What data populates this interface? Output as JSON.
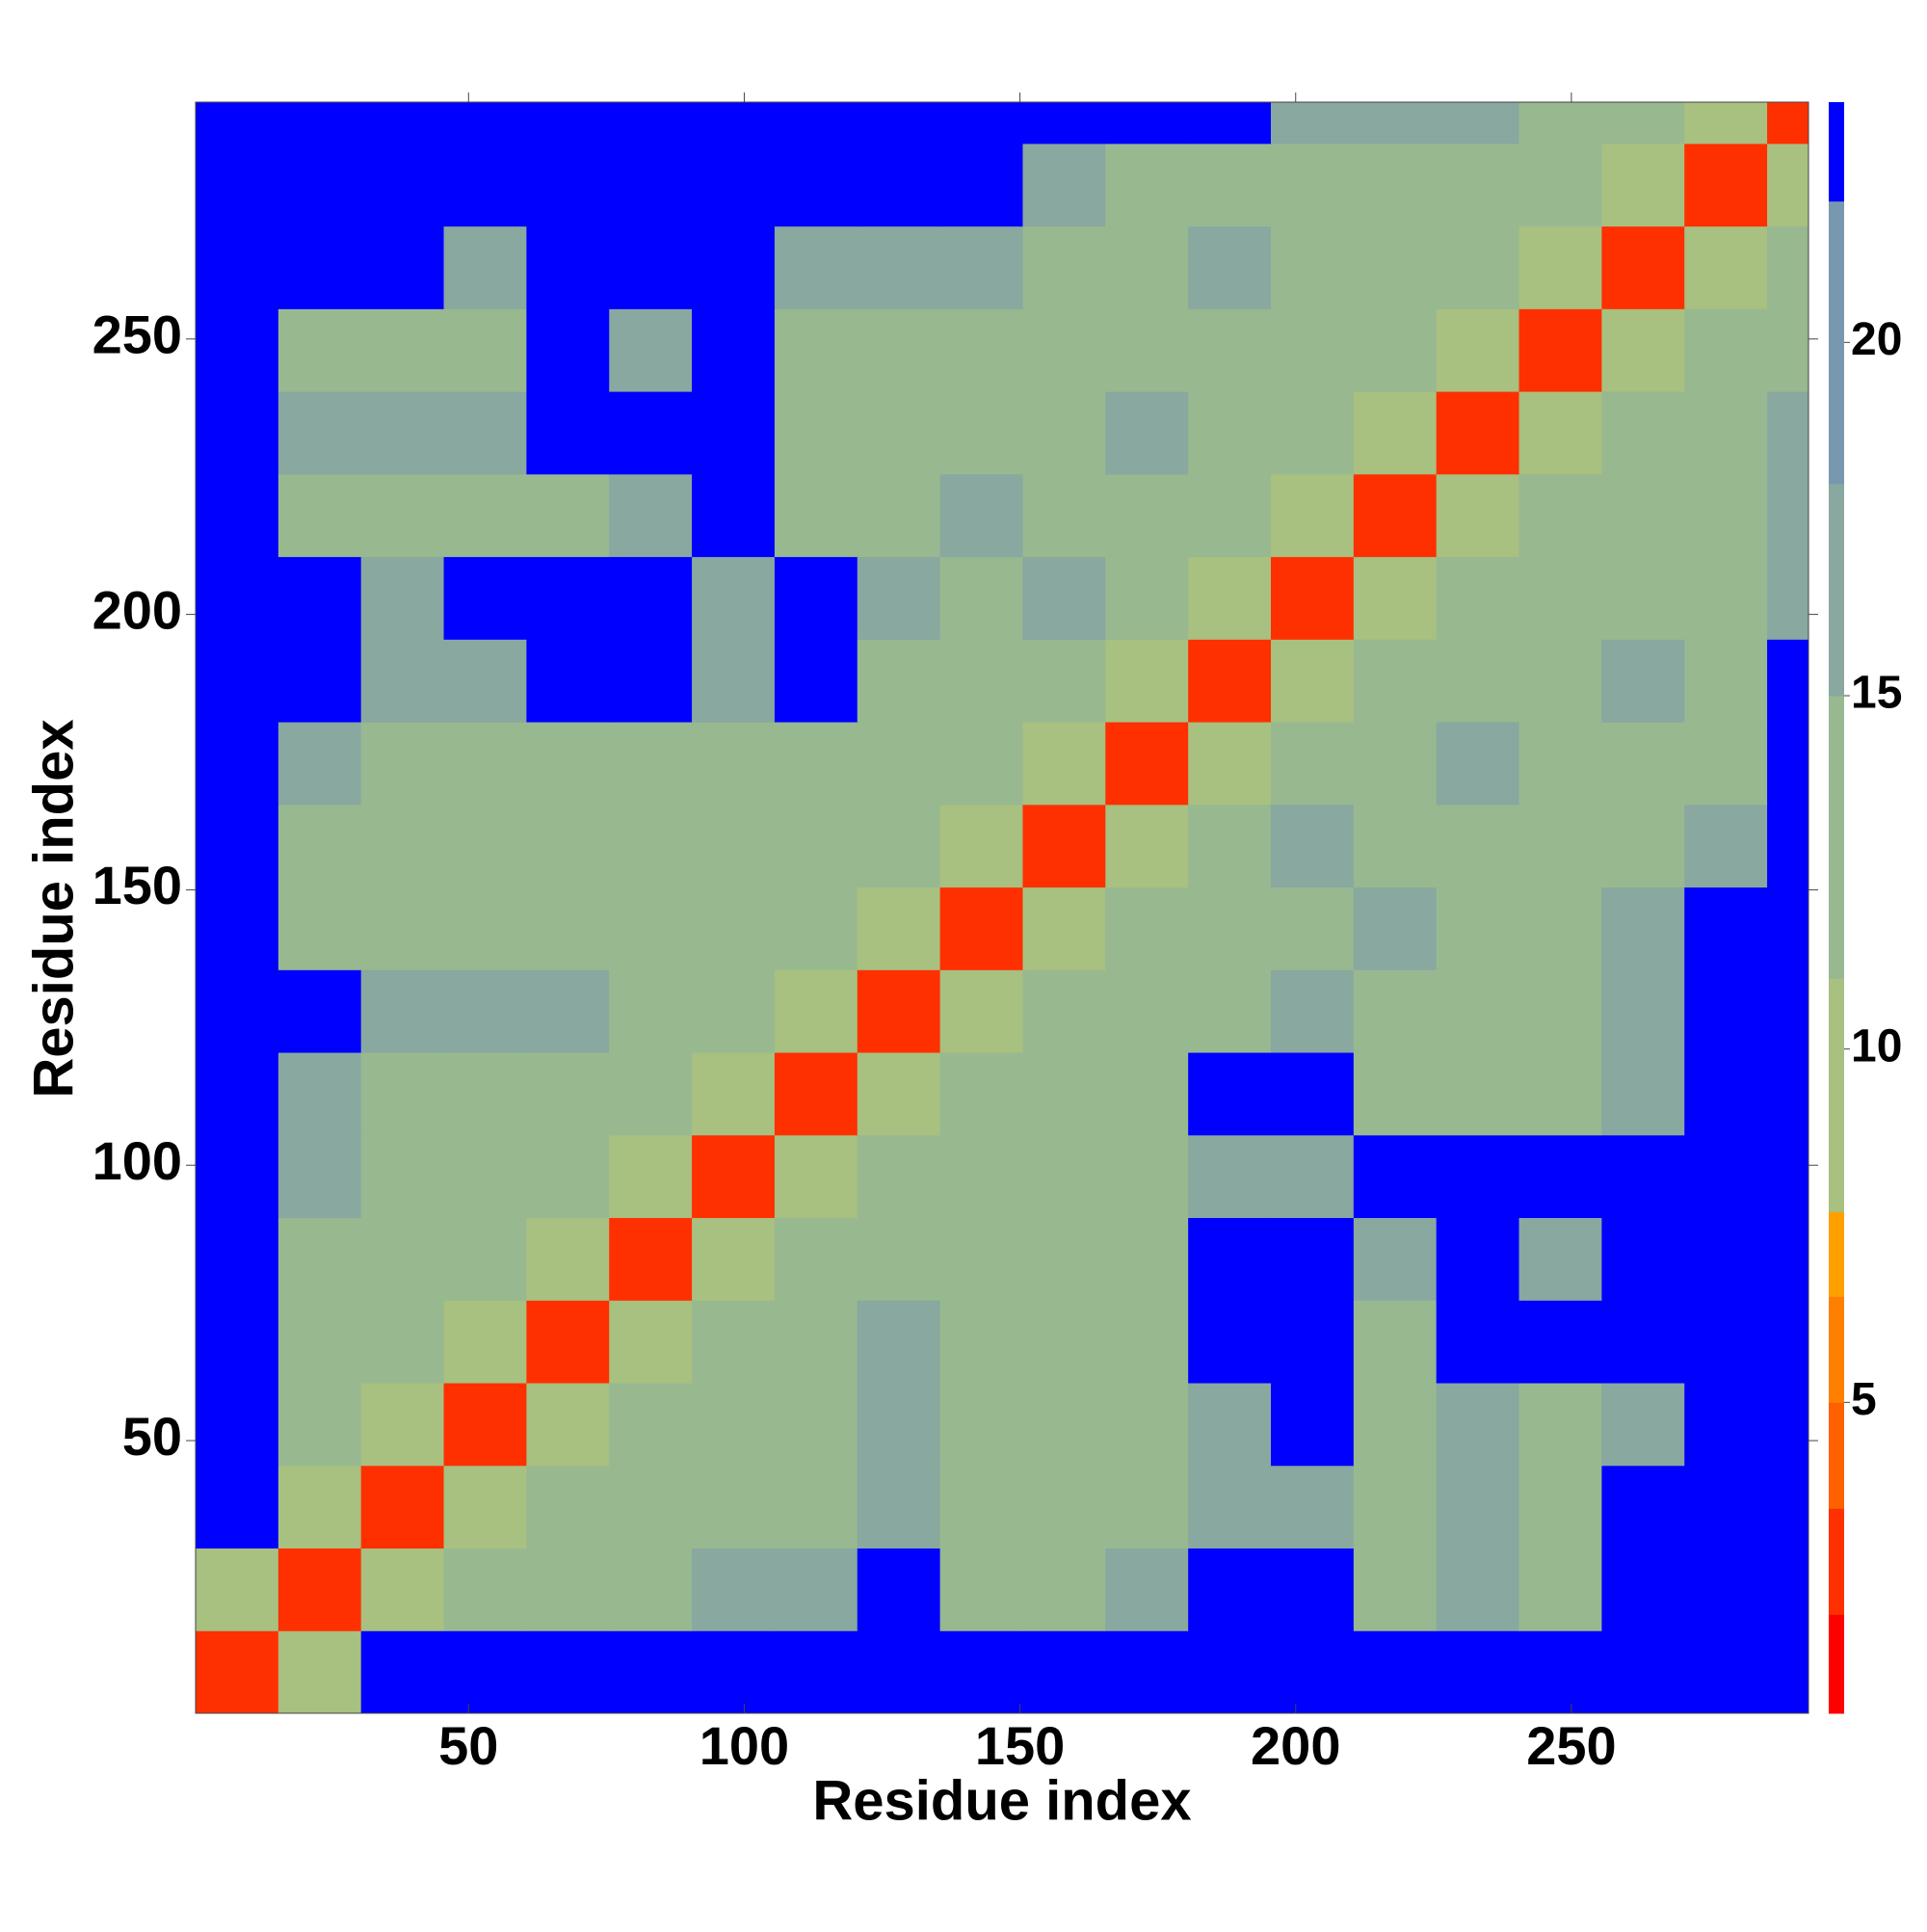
{
  "chart_data": {
    "type": "heatmap",
    "x_label": "Residue index",
    "y_label": "Residue index",
    "xlim": [
      0.5,
      293
    ],
    "ylim": [
      0.5,
      293
    ],
    "xticks": [
      50,
      100,
      150,
      200,
      250
    ],
    "yticks": [
      50,
      100,
      150,
      200,
      250
    ],
    "bins": [
      0.5,
      15.5,
      30.5,
      45.5,
      60.5,
      75.5,
      90.5,
      105.5,
      120.5,
      135.5,
      150.5,
      165.5,
      180.5,
      195.5,
      210.5,
      225.5,
      240.5,
      255.5,
      270.5,
      285.5,
      293
    ],
    "z": [
      [
        3,
        10,
        23,
        23,
        23,
        23,
        23,
        23,
        23,
        23,
        23,
        23,
        23,
        23,
        23,
        23,
        23,
        23,
        23,
        23
      ],
      [
        10,
        3,
        10,
        14,
        14,
        14,
        18,
        18,
        23,
        14,
        14,
        18,
        23,
        23,
        14,
        18,
        14,
        23,
        23,
        23
      ],
      [
        23,
        10,
        3,
        10,
        14,
        14,
        14,
        14,
        18,
        14,
        14,
        14,
        18,
        18,
        14,
        18,
        14,
        23,
        23,
        23
      ],
      [
        23,
        14,
        10,
        3,
        10,
        14,
        14,
        14,
        18,
        14,
        14,
        14,
        18,
        23,
        14,
        18,
        14,
        18,
        23,
        23
      ],
      [
        23,
        14,
        14,
        10,
        3,
        10,
        14,
        14,
        18,
        14,
        14,
        14,
        23,
        23,
        14,
        23,
        23,
        23,
        23,
        23
      ],
      [
        23,
        14,
        14,
        14,
        10,
        3,
        10,
        14,
        14,
        14,
        14,
        14,
        23,
        23,
        18,
        23,
        18,
        23,
        23,
        23
      ],
      [
        23,
        18,
        14,
        14,
        14,
        10,
        3,
        10,
        14,
        14,
        14,
        14,
        18,
        18,
        23,
        23,
        23,
        23,
        23,
        23
      ],
      [
        23,
        18,
        14,
        14,
        14,
        14,
        10,
        3,
        10,
        14,
        14,
        14,
        23,
        23,
        14,
        14,
        14,
        18,
        23,
        23
      ],
      [
        23,
        23,
        18,
        18,
        18,
        14,
        14,
        10,
        3,
        10,
        14,
        14,
        14,
        18,
        14,
        14,
        14,
        18,
        23,
        23
      ],
      [
        23,
        14,
        14,
        14,
        14,
        14,
        14,
        14,
        10,
        3,
        10,
        14,
        14,
        14,
        18,
        14,
        14,
        18,
        23,
        23
      ],
      [
        23,
        14,
        14,
        14,
        14,
        14,
        14,
        14,
        14,
        10,
        3,
        10,
        14,
        18,
        14,
        14,
        14,
        14,
        18,
        23
      ],
      [
        23,
        18,
        14,
        14,
        14,
        14,
        14,
        14,
        14,
        14,
        10,
        3,
        10,
        14,
        14,
        18,
        14,
        14,
        14,
        23
      ],
      [
        23,
        23,
        18,
        18,
        23,
        23,
        18,
        23,
        14,
        14,
        14,
        10,
        3,
        10,
        14,
        14,
        14,
        18,
        14,
        23
      ],
      [
        23,
        23,
        18,
        23,
        23,
        23,
        18,
        23,
        18,
        14,
        18,
        14,
        10,
        3,
        10,
        14,
        14,
        14,
        14,
        18
      ],
      [
        23,
        14,
        14,
        14,
        14,
        18,
        23,
        14,
        14,
        18,
        14,
        14,
        14,
        10,
        3,
        10,
        14,
        14,
        14,
        18
      ],
      [
        23,
        18,
        18,
        18,
        23,
        23,
        23,
        14,
        14,
        14,
        14,
        18,
        14,
        14,
        10,
        3,
        10,
        14,
        14,
        18
      ],
      [
        23,
        14,
        14,
        14,
        23,
        18,
        23,
        14,
        14,
        14,
        14,
        14,
        14,
        14,
        14,
        10,
        3,
        10,
        14,
        14
      ],
      [
        23,
        23,
        23,
        18,
        23,
        23,
        23,
        18,
        18,
        18,
        14,
        14,
        18,
        14,
        14,
        14,
        10,
        3,
        10,
        14
      ],
      [
        23,
        23,
        23,
        23,
        23,
        23,
        23,
        23,
        23,
        23,
        18,
        14,
        14,
        14,
        14,
        14,
        14,
        10,
        3,
        10
      ],
      [
        23,
        23,
        23,
        23,
        23,
        23,
        23,
        23,
        23,
        23,
        23,
        23,
        23,
        18,
        18,
        18,
        14,
        14,
        10,
        3
      ]
    ],
    "colorbar": {
      "bounds": [
        0.6,
        2,
        3.5,
        5,
        6.5,
        7.7,
        11,
        15,
        18,
        22,
        23.4
      ],
      "colors": [
        "#ff0000",
        "#ff3000",
        "#ff6000",
        "#ff8000",
        "#ffa000",
        "#a8c080",
        "#98b890",
        "#88a8a0",
        "#7898b0",
        "#0000ff"
      ],
      "ticks": [
        5,
        10,
        15,
        20
      ]
    }
  }
}
